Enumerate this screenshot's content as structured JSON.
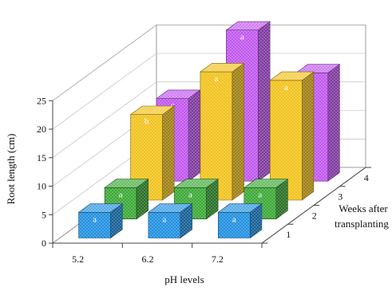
{
  "chart_data": {
    "type": "bar",
    "style": "3d-grouped",
    "ylabel": "Root length (cm)",
    "xlabel": "pH levels",
    "zlabel": [
      "Weeks after",
      "transplanting"
    ],
    "ylim": [
      0,
      25
    ],
    "yticks": [
      "0",
      "5",
      "10",
      "15",
      "20",
      "25"
    ],
    "categories": [
      "5.2",
      "6.2",
      "7.2"
    ],
    "grid": "back and side walls",
    "series": [
      {
        "name": "1",
        "color": "#1f8fe0",
        "values": [
          4.5,
          4.5,
          4.5
        ],
        "labels": [
          "a",
          "a",
          "a"
        ]
      },
      {
        "name": "2",
        "color": "#3aa834",
        "values": [
          5.5,
          5.5,
          5.5
        ],
        "labels": [
          "a",
          "a",
          "a"
        ]
      },
      {
        "name": "3",
        "color": "#f2c21a",
        "values": [
          15.0,
          22.5,
          21.0
        ],
        "labels": [
          "b",
          "a",
          "a"
        ]
      },
      {
        "name": "4",
        "color": "#c056f2",
        "values": [
          14.5,
          26.5,
          19.0
        ],
        "labels": [
          "c",
          "a",
          "b"
        ]
      }
    ]
  }
}
